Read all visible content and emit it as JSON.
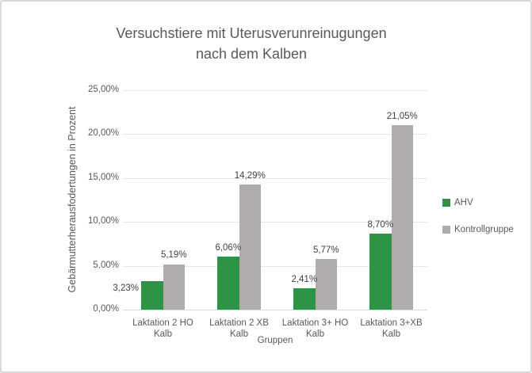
{
  "figure": {
    "background": "#FFFFFF",
    "border_color": "#D9D9D9",
    "text_color": "#595959",
    "data_label_color": "#404040",
    "gridline_color": "#E7E7E7"
  },
  "chart_data": {
    "type": "bar",
    "title": "Versuchstiere mit Uterusverunreinugungen nach dem Kalben",
    "title_lines": [
      "Versuchstiere mit Uterusverunreinugungen",
      "nach dem Kalben"
    ],
    "xlabel": "Gruppen",
    "ylabel": "Gebärmutterherausfodertungen in Prozent",
    "categories": [
      "Laktation 2 HO Kalb",
      "Laktation 2 XB Kalb",
      "Laktation 3+ HO Kalb",
      "Laktation 3+XB Kalb"
    ],
    "series": [
      {
        "name": "AHV",
        "color": "#2E9344",
        "values": [
          3.23,
          6.06,
          2.41,
          8.7
        ],
        "labels": [
          "3,23%",
          "6,06%",
          "2,41%",
          "8,70%"
        ]
      },
      {
        "name": "Kontrollgruppe",
        "color": "#AFACAB",
        "values": [
          5.19,
          14.29,
          5.77,
          21.05
        ],
        "labels": [
          "5,19%",
          "14,29%",
          "5,77%",
          "21,05%"
        ]
      }
    ],
    "ylim": [
      0,
      25
    ],
    "yticks": {
      "values": [
        0,
        5,
        10,
        15,
        20,
        25
      ],
      "labels": [
        "0,00%",
        "5,00%",
        "10,00%",
        "15,00%",
        "20,00%",
        "25,00%"
      ]
    },
    "grid": true,
    "legend_position": "right"
  }
}
